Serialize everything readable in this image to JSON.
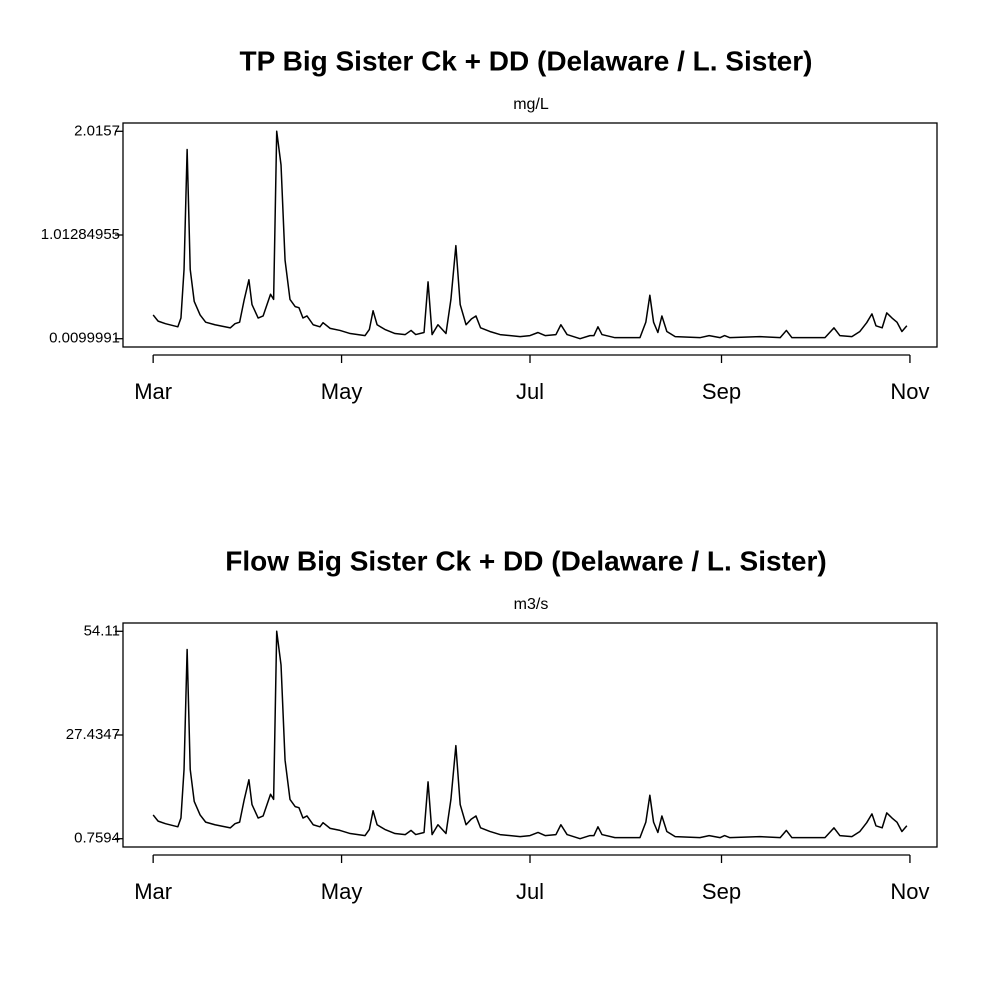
{
  "chart_data": [
    {
      "type": "line",
      "title": "TP Big Sister Ck + DD (Delaware / L. Sister)",
      "subtitle": "mg/L",
      "x": [
        0,
        1.6,
        4,
        8,
        9,
        10,
        11,
        12,
        13.3,
        15.2,
        17,
        20,
        25,
        26.5,
        28,
        29.5,
        31,
        32,
        34,
        35.6,
        38,
        39,
        40,
        41.4,
        42.7,
        44.3,
        46,
        47.2,
        48.5,
        49.8,
        51.8,
        54,
        55,
        57.3,
        60.5,
        63.8,
        68.6,
        70,
        71.2,
        72.5,
        75,
        78.3,
        81.6,
        83.5,
        85,
        87.7,
        89,
        90.3,
        92.2,
        94.8,
        96.4,
        98,
        99.4,
        101.3,
        103,
        104.5,
        106,
        109,
        112.3,
        118.8,
        122,
        124.6,
        126.9,
        130.4,
        132,
        134,
        138.2,
        141.4,
        142.7,
        144,
        145.3,
        149.5,
        157.6,
        159.5,
        160.8,
        162,
        163.4,
        164.7,
        166.3,
        169,
        177,
        180,
        183.5,
        185,
        186.7,
        196.4,
        203,
        205,
        206.8,
        217.5,
        220.4,
        222.3,
        226.2,
        228.8,
        231,
        232.7,
        234,
        236,
        237.5,
        239.2,
        240.8,
        242.4,
        244
      ],
      "series": [
        {
          "color": "#000000",
          "values": [
            0.24,
            0.18,
            0.155,
            0.125,
            0.21,
            0.68,
            1.84,
            0.68,
            0.37,
            0.24,
            0.17,
            0.145,
            0.115,
            0.155,
            0.17,
            0.39,
            0.58,
            0.34,
            0.21,
            0.23,
            0.44,
            0.39,
            2.0157,
            1.69,
            0.77,
            0.39,
            0.32,
            0.31,
            0.21,
            0.23,
            0.145,
            0.125,
            0.165,
            0.11,
            0.09,
            0.06,
            0.04,
            0.1,
            0.28,
            0.145,
            0.1,
            0.06,
            0.05,
            0.09,
            0.05,
            0.07,
            0.56,
            0.05,
            0.145,
            0.06,
            0.39,
            0.91,
            0.34,
            0.145,
            0.2,
            0.23,
            0.115,
            0.08,
            0.05,
            0.03,
            0.04,
            0.07,
            0.04,
            0.05,
            0.145,
            0.05,
            0.0099991,
            0.04,
            0.04,
            0.125,
            0.05,
            0.02,
            0.02,
            0.17,
            0.43,
            0.17,
            0.07,
            0.23,
            0.08,
            0.03,
            0.02,
            0.04,
            0.02,
            0.04,
            0.02,
            0.03,
            0.02,
            0.09,
            0.02,
            0.02,
            0.115,
            0.04,
            0.03,
            0.08,
            0.165,
            0.25,
            0.135,
            0.115,
            0.26,
            0.21,
            0.17,
            0.08,
            0.135
          ]
        }
      ],
      "xlim": [
        -9.76,
        253.76
      ],
      "xticks": [
        {
          "value": 0,
          "label": "Mar"
        },
        {
          "value": 61,
          "label": "May"
        },
        {
          "value": 122,
          "label": "Jul"
        },
        {
          "value": 184,
          "label": "Sep"
        },
        {
          "value": 245,
          "label": "Nov"
        }
      ],
      "ylim": [
        -0.0702,
        2.0959
      ],
      "yticks": [
        0.0099991,
        1.01284955,
        2.0157
      ]
    },
    {
      "type": "line",
      "title": "Flow Big Sister Ck + DD (Delaware / L. Sister)",
      "subtitle": "m3/s",
      "x": [
        0,
        1.6,
        4,
        8,
        9,
        10,
        11,
        12,
        13.3,
        15.2,
        17,
        20,
        25,
        26.5,
        28,
        29.5,
        31,
        32,
        34,
        35.6,
        38,
        39,
        40,
        41.4,
        42.7,
        44.3,
        46,
        47.2,
        48.5,
        49.8,
        51.8,
        54,
        55,
        57.3,
        60.5,
        63.8,
        68.6,
        70,
        71.2,
        72.5,
        75,
        78.3,
        81.6,
        83.5,
        85,
        87.7,
        89,
        90.3,
        92.2,
        94.8,
        96.4,
        98,
        99.4,
        101.3,
        103,
        104.5,
        106,
        109,
        112.3,
        118.8,
        122,
        124.6,
        126.9,
        130.4,
        132,
        134,
        138.2,
        141.4,
        142.7,
        144,
        145.3,
        149.5,
        157.6,
        159.5,
        160.8,
        162,
        163.4,
        164.7,
        166.3,
        169,
        177,
        180,
        183.5,
        185,
        186.7,
        196.4,
        203,
        205,
        206.8,
        217.5,
        220.4,
        222.3,
        226.2,
        228.8,
        231,
        232.7,
        234,
        236,
        237.5,
        239.2,
        240.8,
        242.4,
        244
      ],
      "series": [
        {
          "color": "#000000",
          "values": [
            6.88,
            5.28,
            4.62,
            3.82,
            6.08,
            18.58,
            49.44,
            18.58,
            10.34,
            6.88,
            5.02,
            4.35,
            3.55,
            4.62,
            5.02,
            10.87,
            15.92,
            9.54,
            6.08,
            6.61,
            12.2,
            10.87,
            54.11,
            45.45,
            20.98,
            10.87,
            9.01,
            8.74,
            6.08,
            6.61,
            4.35,
            3.82,
            4.88,
            3.42,
            2.89,
            2.09,
            1.56,
            3.15,
            7.94,
            4.35,
            3.15,
            2.09,
            1.82,
            2.89,
            1.82,
            2.36,
            15.39,
            1.82,
            4.35,
            2.09,
            10.87,
            24.7,
            9.54,
            4.35,
            5.81,
            6.61,
            3.55,
            2.62,
            1.82,
            1.29,
            1.56,
            2.36,
            1.56,
            1.82,
            4.35,
            1.82,
            0.7594,
            1.56,
            1.56,
            3.82,
            1.82,
            1.03,
            1.03,
            5.02,
            11.93,
            5.02,
            2.36,
            6.61,
            2.62,
            1.29,
            1.03,
            1.56,
            1.03,
            1.56,
            1.03,
            1.29,
            1.03,
            2.89,
            1.03,
            1.03,
            3.55,
            1.56,
            1.29,
            2.62,
            4.88,
            7.14,
            4.08,
            3.55,
            7.41,
            6.08,
            5.02,
            2.62,
            4.08
          ]
        }
      ],
      "xlim": [
        -9.76,
        253.76
      ],
      "xticks": [
        {
          "value": 0,
          "label": "Mar"
        },
        {
          "value": 61,
          "label": "May"
        },
        {
          "value": 122,
          "label": "Jul"
        },
        {
          "value": 184,
          "label": "Sep"
        },
        {
          "value": 245,
          "label": "Nov"
        }
      ],
      "ylim": [
        -1.375,
        56.244
      ],
      "yticks": [
        0.7594,
        27.4347,
        54.11
      ]
    }
  ]
}
